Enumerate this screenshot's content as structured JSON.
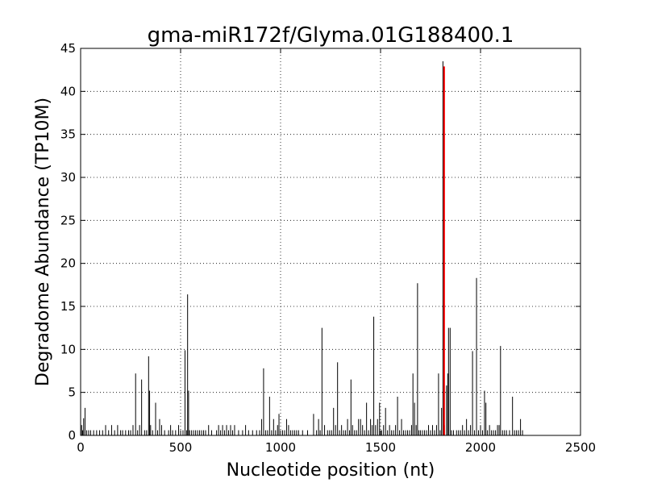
{
  "chart_data": {
    "type": "bar",
    "title": "gma-miR172f/Glyma.01G188400.1",
    "xlabel": "Nucleotide position (nt)",
    "ylabel": "Degradome Abundance (TP10M)",
    "xlim": [
      0,
      2500
    ],
    "ylim": [
      0,
      45
    ],
    "xticks": [
      "0",
      "500",
      "1000",
      "1500",
      "2000",
      "2500"
    ],
    "yticks": [
      "0",
      "5",
      "10",
      "15",
      "20",
      "25",
      "30",
      "35",
      "40",
      "45"
    ],
    "grid": true,
    "colors": {
      "background_peaks": "#000000",
      "target_peak": "#ff0000"
    },
    "series": [
      {
        "values": [
          [
            5,
            1.2
          ],
          [
            10,
            0.6
          ],
          [
            15,
            2.0
          ],
          [
            22,
            3.2
          ],
          [
            30,
            0.6
          ],
          [
            40,
            0.6
          ],
          [
            50,
            0.6
          ],
          [
            65,
            0.6
          ],
          [
            80,
            0.6
          ],
          [
            95,
            0.6
          ],
          [
            110,
            0.6
          ],
          [
            125,
            1.2
          ],
          [
            140,
            0.6
          ],
          [
            155,
            1.2
          ],
          [
            170,
            0.6
          ],
          [
            185,
            1.2
          ],
          [
            200,
            0.6
          ],
          [
            210,
            0.6
          ],
          [
            225,
            0.6
          ],
          [
            240,
            0.6
          ],
          [
            250,
            0.6
          ],
          [
            262,
            1.2
          ],
          [
            275,
            7.2
          ],
          [
            285,
            0.6
          ],
          [
            295,
            1.2
          ],
          [
            305,
            6.5
          ],
          [
            320,
            0.6
          ],
          [
            330,
            0.6
          ],
          [
            340,
            9.2
          ],
          [
            345,
            5.2
          ],
          [
            350,
            1.2
          ],
          [
            360,
            0.6
          ],
          [
            375,
            3.8
          ],
          [
            385,
            0.6
          ],
          [
            395,
            1.9
          ],
          [
            405,
            1.2
          ],
          [
            420,
            0.6
          ],
          [
            440,
            0.6
          ],
          [
            450,
            1.2
          ],
          [
            460,
            0.6
          ],
          [
            475,
            0.6
          ],
          [
            490,
            1.2
          ],
          [
            500,
            0.6
          ],
          [
            512,
            0.6
          ],
          [
            522,
            9.9
          ],
          [
            530,
            0.6
          ],
          [
            535,
            16.4
          ],
          [
            540,
            5.2
          ],
          [
            545,
            0.6
          ],
          [
            555,
            0.6
          ],
          [
            565,
            0.6
          ],
          [
            575,
            0.6
          ],
          [
            585,
            0.6
          ],
          [
            595,
            0.6
          ],
          [
            605,
            0.6
          ],
          [
            615,
            0.6
          ],
          [
            625,
            0.6
          ],
          [
            640,
            1.2
          ],
          [
            655,
            0.6
          ],
          [
            680,
            0.6
          ],
          [
            690,
            1.2
          ],
          [
            700,
            0.6
          ],
          [
            710,
            1.2
          ],
          [
            720,
            0.6
          ],
          [
            730,
            1.2
          ],
          [
            740,
            0.6
          ],
          [
            750,
            1.2
          ],
          [
            760,
            0.6
          ],
          [
            770,
            1.2
          ],
          [
            790,
            0.6
          ],
          [
            810,
            0.6
          ],
          [
            825,
            1.2
          ],
          [
            840,
            0.6
          ],
          [
            860,
            0.6
          ],
          [
            880,
            0.6
          ],
          [
            895,
            0.6
          ],
          [
            905,
            1.9
          ],
          [
            915,
            7.8
          ],
          [
            925,
            0.6
          ],
          [
            935,
            0.6
          ],
          [
            945,
            4.5
          ],
          [
            955,
            0.6
          ],
          [
            965,
            1.9
          ],
          [
            975,
            0.6
          ],
          [
            985,
            1.2
          ],
          [
            992,
            2.5
          ],
          [
            1000,
            0.6
          ],
          [
            1010,
            0.6
          ],
          [
            1020,
            0.6
          ],
          [
            1030,
            1.9
          ],
          [
            1040,
            1.2
          ],
          [
            1050,
            0.6
          ],
          [
            1060,
            0.6
          ],
          [
            1070,
            0.6
          ],
          [
            1080,
            0.6
          ],
          [
            1090,
            0.6
          ],
          [
            1110,
            0.6
          ],
          [
            1135,
            0.6
          ],
          [
            1165,
            2.5
          ],
          [
            1180,
            0.6
          ],
          [
            1190,
            1.9
          ],
          [
            1198,
            0.6
          ],
          [
            1207,
            12.5
          ],
          [
            1220,
            1.2
          ],
          [
            1235,
            0.6
          ],
          [
            1245,
            0.6
          ],
          [
            1255,
            0.6
          ],
          [
            1265,
            3.2
          ],
          [
            1275,
            1.2
          ],
          [
            1285,
            8.5
          ],
          [
            1295,
            0.6
          ],
          [
            1305,
            1.2
          ],
          [
            1315,
            0.6
          ],
          [
            1325,
            0.6
          ],
          [
            1335,
            1.9
          ],
          [
            1345,
            0.6
          ],
          [
            1352,
            6.5
          ],
          [
            1360,
            1.2
          ],
          [
            1370,
            0.6
          ],
          [
            1380,
            0.6
          ],
          [
            1390,
            1.9
          ],
          [
            1400,
            1.9
          ],
          [
            1410,
            1.2
          ],
          [
            1420,
            0.6
          ],
          [
            1430,
            3.8
          ],
          [
            1440,
            0.6
          ],
          [
            1450,
            1.9
          ],
          [
            1458,
            1.2
          ],
          [
            1466,
            13.8
          ],
          [
            1475,
            1.2
          ],
          [
            1485,
            1.9
          ],
          [
            1495,
            3.8
          ],
          [
            1505,
            0.6
          ],
          [
            1515,
            1.2
          ],
          [
            1525,
            3.2
          ],
          [
            1535,
            0.6
          ],
          [
            1545,
            1.2
          ],
          [
            1555,
            0.6
          ],
          [
            1565,
            0.6
          ],
          [
            1575,
            1.2
          ],
          [
            1585,
            4.5
          ],
          [
            1595,
            0.6
          ],
          [
            1605,
            1.9
          ],
          [
            1615,
            0.6
          ],
          [
            1625,
            0.6
          ],
          [
            1635,
            0.6
          ],
          [
            1645,
            0.6
          ],
          [
            1655,
            1.2
          ],
          [
            1662,
            7.2
          ],
          [
            1670,
            3.8
          ],
          [
            1678,
            1.2
          ],
          [
            1685,
            17.7
          ],
          [
            1692,
            0.6
          ],
          [
            1700,
            0.6
          ],
          [
            1710,
            0.6
          ],
          [
            1720,
            0.6
          ],
          [
            1730,
            0.6
          ],
          [
            1740,
            1.2
          ],
          [
            1750,
            0.6
          ],
          [
            1760,
            1.2
          ],
          [
            1770,
            0.6
          ],
          [
            1780,
            1.2
          ],
          [
            1790,
            7.2
          ],
          [
            1798,
            0.6
          ],
          [
            1805,
            3.2
          ],
          [
            1812,
            43.5
          ],
          [
            1820,
            1.2
          ],
          [
            1830,
            5.8
          ],
          [
            1836,
            7.2
          ],
          [
            1840,
            12.5
          ],
          [
            1848,
            12.5
          ],
          [
            1855,
            0.6
          ],
          [
            1865,
            0.6
          ],
          [
            1880,
            0.6
          ],
          [
            1890,
            0.6
          ],
          [
            1900,
            0.6
          ],
          [
            1910,
            1.2
          ],
          [
            1920,
            0.6
          ],
          [
            1930,
            1.9
          ],
          [
            1940,
            0.6
          ],
          [
            1950,
            1.2
          ],
          [
            1960,
            9.8
          ],
          [
            1970,
            0.6
          ],
          [
            1980,
            18.3
          ],
          [
            1990,
            0.6
          ],
          [
            2000,
            1.2
          ],
          [
            2010,
            0.6
          ],
          [
            2020,
            5.2
          ],
          [
            2027,
            3.8
          ],
          [
            2035,
            0.6
          ],
          [
            2045,
            1.2
          ],
          [
            2055,
            0.6
          ],
          [
            2065,
            0.6
          ],
          [
            2075,
            0.6
          ],
          [
            2085,
            1.2
          ],
          [
            2093,
            1.2
          ],
          [
            2100,
            10.4
          ],
          [
            2110,
            0.6
          ],
          [
            2120,
            0.6
          ],
          [
            2130,
            0.6
          ],
          [
            2145,
            0.6
          ],
          [
            2160,
            4.5
          ],
          [
            2170,
            0.6
          ],
          [
            2180,
            0.6
          ],
          [
            2190,
            0.6
          ],
          [
            2200,
            1.9
          ],
          [
            2210,
            0.6
          ]
        ]
      },
      {
        "values": [
          [
            1818,
            42.9
          ]
        ]
      }
    ]
  }
}
